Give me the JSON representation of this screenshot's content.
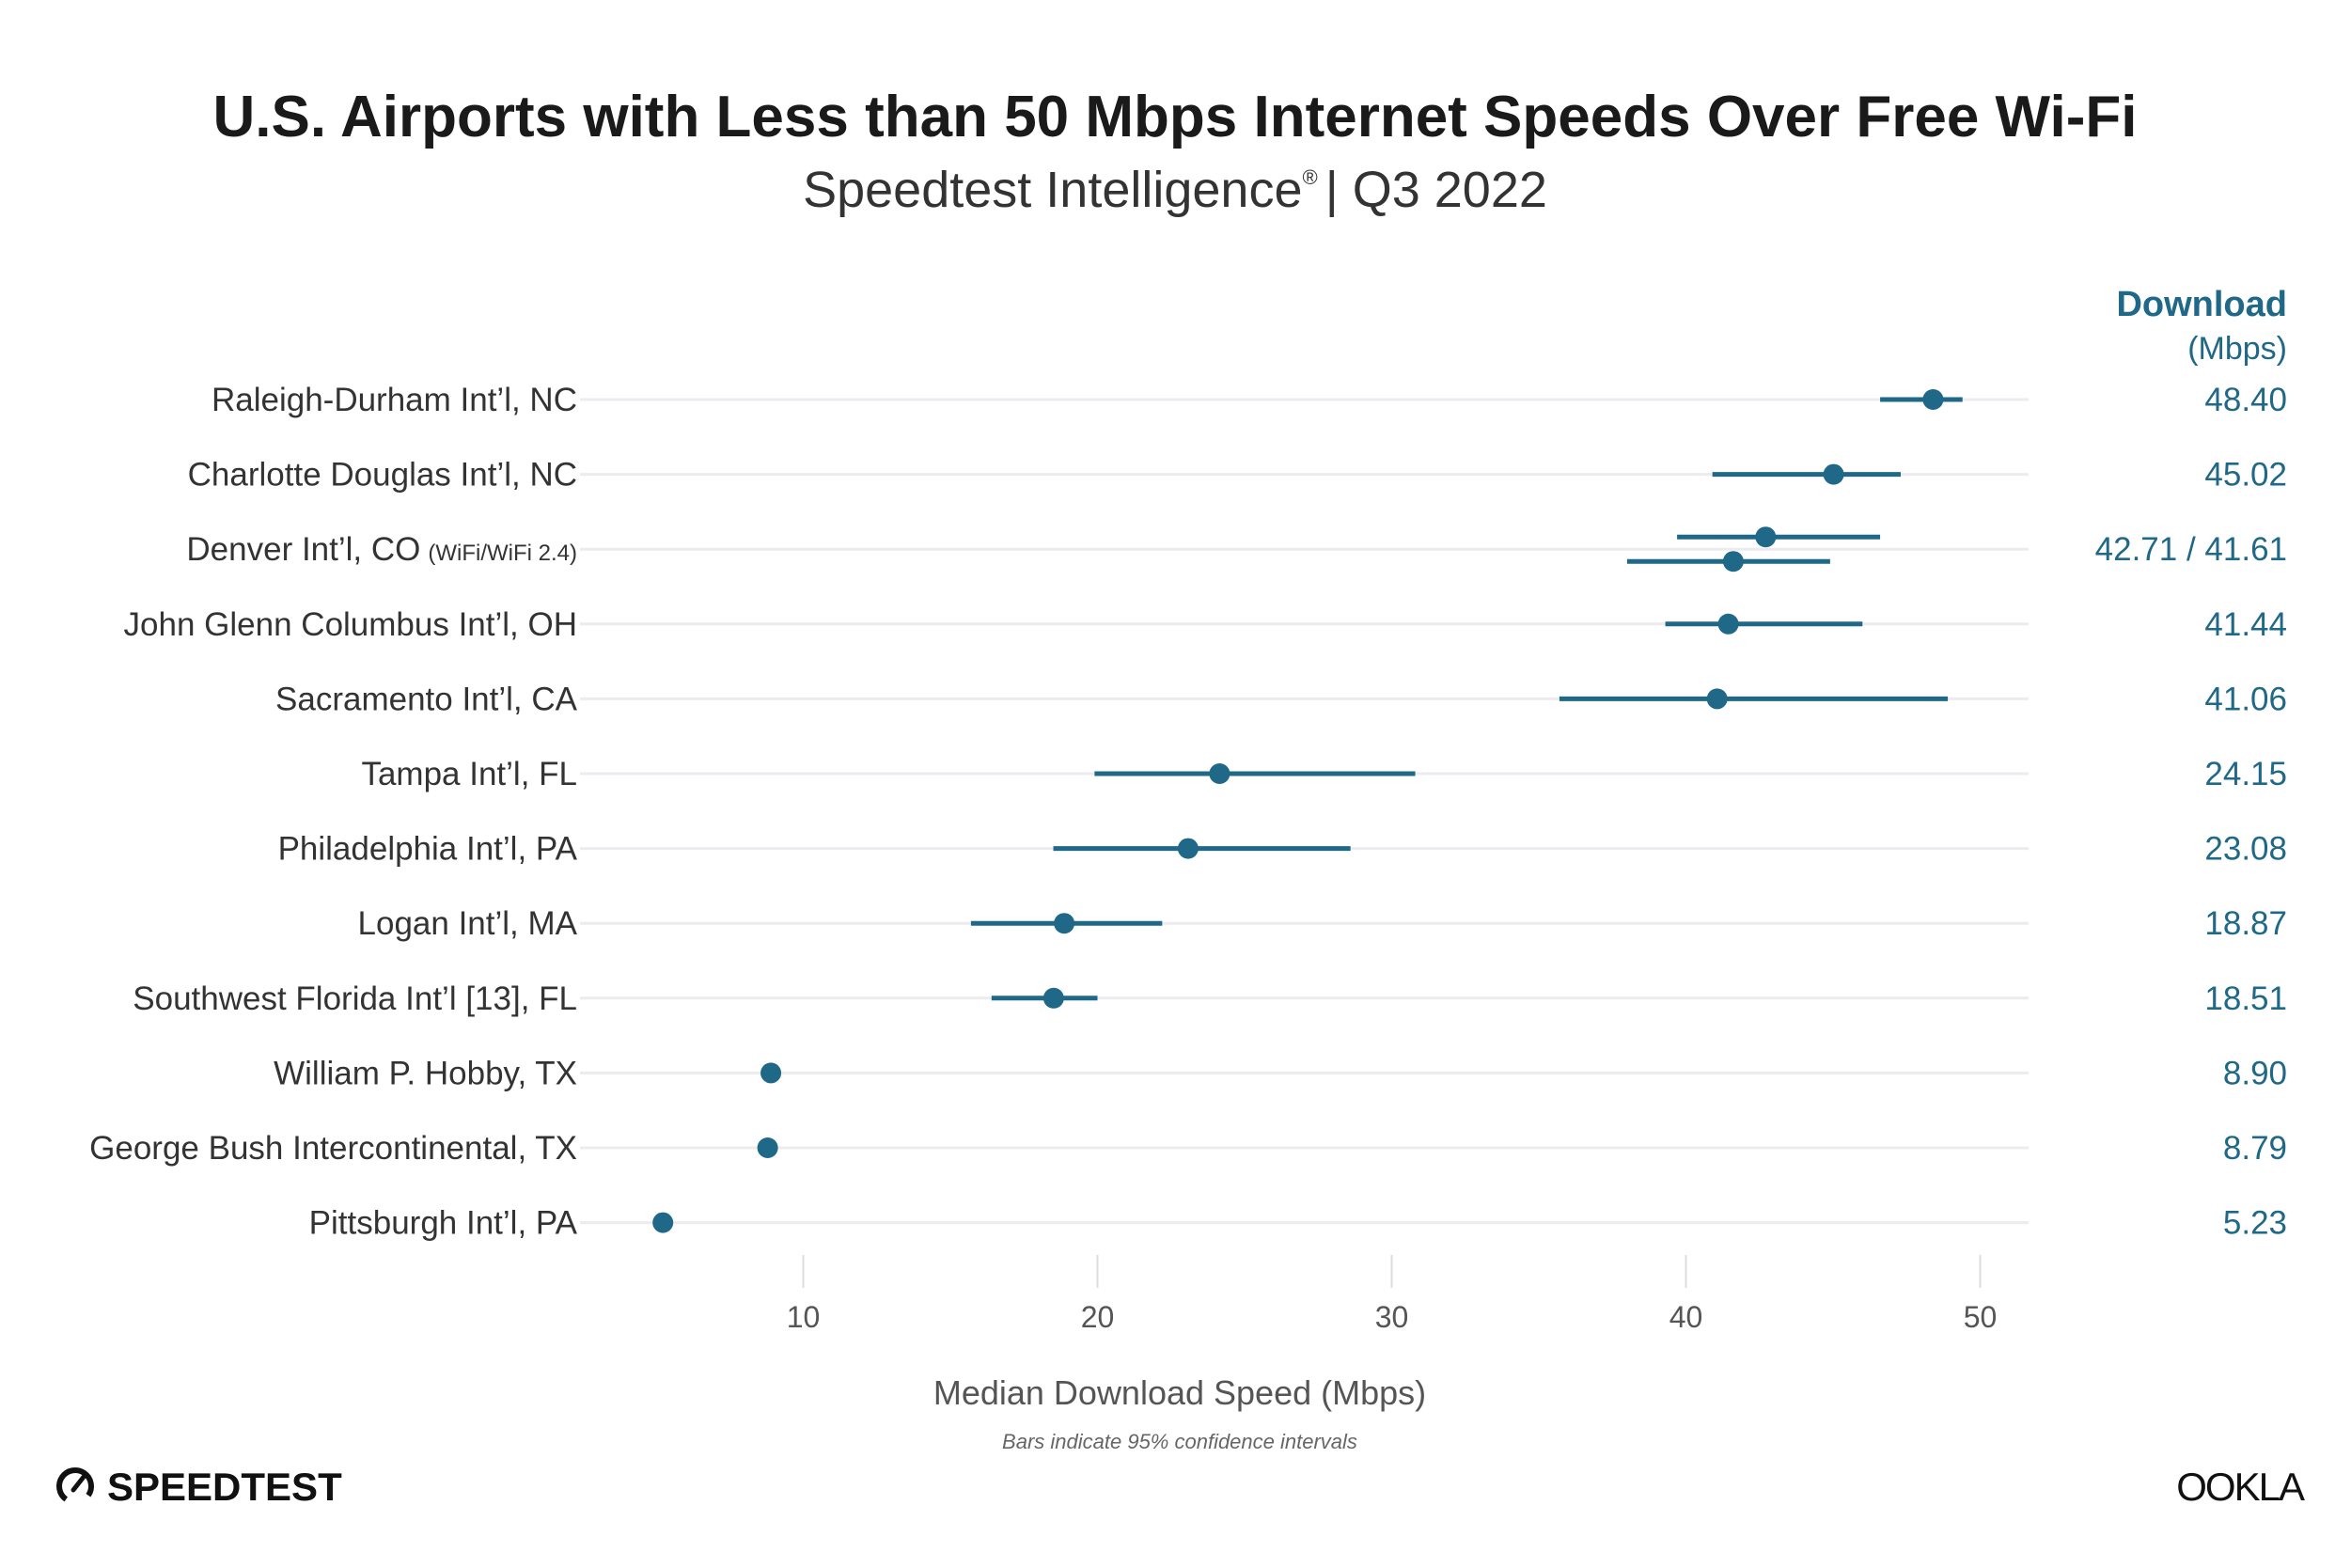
{
  "chart_data": {
    "type": "dot-with-error-bars",
    "title": "U.S. Airports with Less than 50 Mbps Internet Speeds Over Free Wi-Fi",
    "subtitle_main": "Speedtest Intelligence",
    "subtitle_mark": "®",
    "subtitle_rest": "| Q3 2022",
    "xlabel": "Median Download Speed (Mbps)",
    "note": "Bars indicate 95% confidence intervals",
    "value_header": "Download",
    "value_unit": "(Mbps)",
    "xlim": [
      3,
      52
    ],
    "xticks": [
      10,
      20,
      30,
      40,
      50
    ],
    "grid": true,
    "color": "#1f6887",
    "rows": [
      {
        "label": "Raleigh-Durham Int’l, NC",
        "value_text": "48.40",
        "points": [
          {
            "value": 48.4,
            "ci": [
              46.6,
              49.4
            ]
          }
        ]
      },
      {
        "label": "Charlotte Douglas Int’l, NC",
        "value_text": "45.02",
        "points": [
          {
            "value": 45.02,
            "ci": [
              40.9,
              47.3
            ]
          }
        ]
      },
      {
        "label": "Denver Int’l, CO",
        "label_suffix": "(WiFi/WiFi 2.4)",
        "value_text": "42.71 / 41.61",
        "points": [
          {
            "value": 42.71,
            "ci": [
              39.7,
              46.6
            ]
          },
          {
            "value": 41.61,
            "ci": [
              38.0,
              44.9
            ]
          }
        ]
      },
      {
        "label": "John Glenn Columbus Int’l, OH",
        "value_text": "41.44",
        "points": [
          {
            "value": 41.44,
            "ci": [
              39.3,
              46.0
            ]
          }
        ]
      },
      {
        "label": "Sacramento Int’l, CA",
        "value_text": "41.06",
        "points": [
          {
            "value": 41.06,
            "ci": [
              35.7,
              48.9
            ]
          }
        ]
      },
      {
        "label": "Tampa Int’l, FL",
        "value_text": "24.15",
        "points": [
          {
            "value": 24.15,
            "ci": [
              19.9,
              30.8
            ]
          }
        ]
      },
      {
        "label": "Philadelphia Int’l, PA",
        "value_text": "23.08",
        "points": [
          {
            "value": 23.08,
            "ci": [
              18.5,
              28.6
            ]
          }
        ]
      },
      {
        "label": "Logan Int’l, MA",
        "value_text": "18.87",
        "points": [
          {
            "value": 18.87,
            "ci": [
              15.7,
              22.2
            ]
          }
        ]
      },
      {
        "label": "Southwest Florida Int’l [13], FL",
        "value_text": "18.51",
        "points": [
          {
            "value": 18.51,
            "ci": [
              16.4,
              20.0
            ]
          }
        ]
      },
      {
        "label": "William P. Hobby, TX",
        "value_text": "8.90",
        "points": [
          {
            "value": 8.9
          }
        ]
      },
      {
        "label": "George Bush Intercontinental, TX",
        "value_text": "8.79",
        "points": [
          {
            "value": 8.79
          }
        ]
      },
      {
        "label": "Pittsburgh Int’l, PA",
        "value_text": "5.23",
        "points": [
          {
            "value": 5.23
          }
        ]
      }
    ]
  },
  "branding": {
    "speedtest_logo": "SPEEDTEST",
    "ookla_logo": "OOKLA"
  }
}
